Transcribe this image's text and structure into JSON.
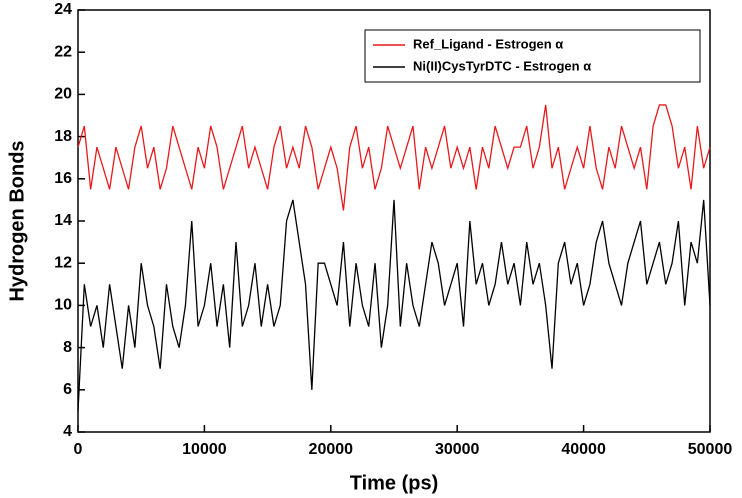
{
  "chart_data": {
    "type": "line",
    "xlabel": "Time (ps)",
    "ylabel": "Hydrogen Bonds",
    "x": [
      0,
      500,
      1000,
      1500,
      2000,
      2500,
      3000,
      3500,
      4000,
      4500,
      5000,
      5500,
      6000,
      6500,
      7000,
      7500,
      8000,
      8500,
      9000,
      9500,
      10000,
      10500,
      11000,
      11500,
      12000,
      12500,
      13000,
      13500,
      14000,
      14500,
      15000,
      15500,
      16000,
      16500,
      17000,
      17500,
      18000,
      18500,
      19000,
      19500,
      20000,
      20500,
      21000,
      21500,
      22000,
      22500,
      23000,
      23500,
      24000,
      24500,
      25000,
      25500,
      26000,
      26500,
      27000,
      27500,
      28000,
      28500,
      29000,
      29500,
      30000,
      30500,
      31000,
      31500,
      32000,
      32500,
      33000,
      33500,
      34000,
      34500,
      35000,
      35500,
      36000,
      36500,
      37000,
      37500,
      38000,
      38500,
      39000,
      39500,
      40000,
      40500,
      41000,
      41500,
      42000,
      42500,
      43000,
      43500,
      44000,
      44500,
      45000,
      45500,
      46000,
      46500,
      47000,
      47500,
      48000,
      48500,
      49000,
      49500,
      50000
    ],
    "series": [
      {
        "name": "Ref_Ligand - Estrogen α",
        "color": "#e8191c",
        "values": [
          17.5,
          18.5,
          15.5,
          17.5,
          16.5,
          15.5,
          17.5,
          16.5,
          15.5,
          17.5,
          18.5,
          16.5,
          17.5,
          15.5,
          16.5,
          18.5,
          17.5,
          16.5,
          15.5,
          17.5,
          16.5,
          18.5,
          17.5,
          15.5,
          16.5,
          17.5,
          18.5,
          16.5,
          17.5,
          16.5,
          15.5,
          17.5,
          18.5,
          16.5,
          17.5,
          16.5,
          18.5,
          17.5,
          15.5,
          16.5,
          17.5,
          16.5,
          14.5,
          17.5,
          18.5,
          16.5,
          17.5,
          15.5,
          16.5,
          18.5,
          17.5,
          16.5,
          17.5,
          18.5,
          15.5,
          17.5,
          16.5,
          17.5,
          18.5,
          16.5,
          17.5,
          16.5,
          17.5,
          15.5,
          17.5,
          16.5,
          18.5,
          17.5,
          16.5,
          17.5,
          17.5,
          18.5,
          16.5,
          17.5,
          19.5,
          16.5,
          17.5,
          15.5,
          16.5,
          17.5,
          16.5,
          18.5,
          16.5,
          15.5,
          17.5,
          16.5,
          18.5,
          17.5,
          16.5,
          17.5,
          15.5,
          18.5,
          19.5,
          19.5,
          18.5,
          16.5,
          17.5,
          15.5,
          18.5,
          16.5,
          17.5
        ]
      },
      {
        "name": "Ni(II)CysTyrDTC - Estrogen α",
        "color": "#000000",
        "values": [
          5,
          11,
          9,
          10,
          8,
          11,
          9,
          7,
          10,
          8,
          12,
          10,
          9,
          7,
          11,
          9,
          8,
          10,
          14,
          9,
          10,
          12,
          9,
          11,
          8,
          13,
          9,
          10,
          12,
          9,
          11,
          9,
          10,
          14,
          15,
          13,
          11,
          6,
          12,
          12,
          11,
          10,
          13,
          9,
          12,
          10,
          9,
          12,
          8,
          10,
          15,
          9,
          12,
          10,
          9,
          11,
          13,
          12,
          10,
          11,
          12,
          9,
          14,
          11,
          12,
          10,
          11,
          13,
          11,
          12,
          10,
          13,
          11,
          12,
          10,
          7,
          12,
          13,
          11,
          12,
          10,
          11,
          13,
          14,
          12,
          11,
          10,
          12,
          13,
          14,
          11,
          12,
          13,
          11,
          12,
          14,
          10,
          13,
          12,
          15,
          10
        ]
      }
    ],
    "xlim": [
      0,
      50000
    ],
    "xticks": [
      0,
      10000,
      20000,
      30000,
      40000,
      50000
    ],
    "ylim": [
      4,
      24
    ],
    "yticks": [
      4,
      6,
      8,
      10,
      12,
      14,
      16,
      18,
      20,
      22,
      24
    ],
    "legend": "upper right"
  }
}
